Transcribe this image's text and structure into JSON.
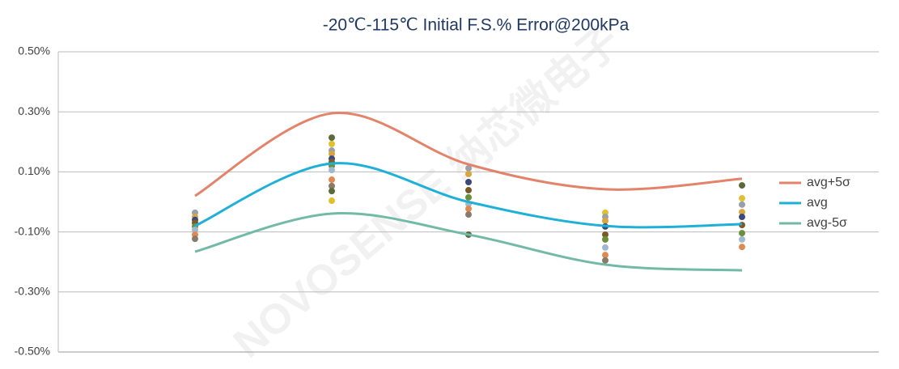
{
  "chart_data": {
    "type": "line",
    "title": "-20℃-115℃ Initial F.S.% Error@200kPa",
    "watermark": "NOVOSENSE 纳芯微电子",
    "xlim": [
      0,
      6
    ],
    "x": [
      1,
      2,
      3,
      4,
      5
    ],
    "ylim": [
      -0.5,
      0.5
    ],
    "yticks": [
      {
        "value": -0.5,
        "label": "-0.50%"
      },
      {
        "value": -0.3,
        "label": "-0.30%"
      },
      {
        "value": -0.1,
        "label": "-0.10%"
      },
      {
        "value": 0.1,
        "label": "0.10%"
      },
      {
        "value": 0.3,
        "label": "0.30%"
      },
      {
        "value": 0.5,
        "label": "0.50%"
      }
    ],
    "grid": true,
    "legend": "right",
    "series": [
      {
        "name": "avg+5σ",
        "color": "#e2836a",
        "values": [
          0.02,
          0.295,
          0.125,
          0.042,
          0.077
        ]
      },
      {
        "name": "avg",
        "color": "#1fb0d8",
        "values": [
          -0.08,
          0.128,
          0.0,
          -0.08,
          -0.074
        ]
      },
      {
        "name": "avg-5σ",
        "color": "#72b9a6",
        "values": [
          -0.166,
          -0.039,
          -0.109,
          -0.209,
          -0.228
        ]
      }
    ],
    "scatter_points": {
      "point_colors": [
        "#9aa0a8",
        "#d9a441",
        "#3a4a7a",
        "#7a5a2a",
        "#6b8f3a",
        "#a0b8d0",
        "#e08a50",
        "#8a7a6a",
        "#5a6a3a",
        "#e0c030"
      ],
      "x": [
        1,
        1,
        1,
        1,
        1,
        1,
        1,
        1,
        2,
        2,
        2,
        2,
        2,
        2,
        2,
        2,
        2,
        2,
        2,
        2,
        3,
        3,
        3,
        3,
        3,
        3,
        3,
        3,
        3,
        4,
        4,
        4,
        4,
        4,
        4,
        4,
        4,
        4,
        5,
        5,
        5,
        5,
        5,
        5,
        5,
        5,
        5
      ],
      "y": [
        -0.036,
        -0.05,
        -0.06,
        -0.07,
        -0.082,
        -0.093,
        -0.109,
        -0.123,
        0.214,
        0.193,
        0.171,
        0.16,
        0.144,
        0.133,
        0.12,
        0.106,
        0.074,
        0.053,
        0.036,
        0.004,
        0.112,
        0.093,
        0.066,
        0.039,
        0.015,
        -0.007,
        -0.023,
        -0.042,
        -0.109,
        -0.036,
        -0.05,
        -0.063,
        -0.082,
        -0.109,
        -0.125,
        -0.152,
        -0.177,
        -0.195,
        0.055,
        0.012,
        -0.009,
        -0.034,
        -0.05,
        -0.077,
        -0.104,
        -0.125,
        -0.15
      ]
    }
  }
}
